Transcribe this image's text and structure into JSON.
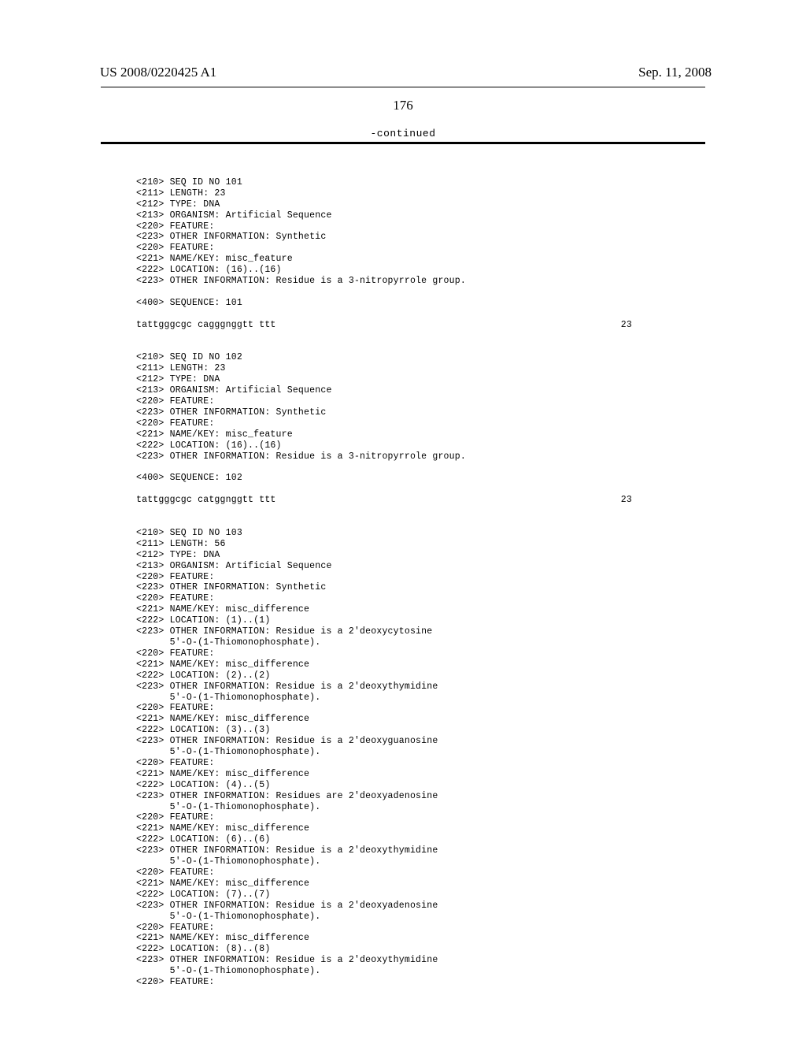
{
  "header": {
    "publication_number": "US 2008/0220425 A1",
    "publication_date": "Sep. 11, 2008"
  },
  "page_number": "176",
  "continued_label": "-continued",
  "sequences": [
    {
      "lines": [
        "",
        "<210> SEQ ID NO 101",
        "<211> LENGTH: 23",
        "<212> TYPE: DNA",
        "<213> ORGANISM: Artificial Sequence",
        "<220> FEATURE:",
        "<223> OTHER INFORMATION: Synthetic",
        "<220> FEATURE:",
        "<221> NAME/KEY: misc_feature",
        "<222> LOCATION: (16)..(16)",
        "<223> OTHER INFORMATION: Residue is a 3-nitropyrrole group.",
        "",
        "<400> SEQUENCE: 101",
        ""
      ],
      "sequence_line": "tattgggcgc cagggnggtt ttt",
      "count": "23"
    },
    {
      "lines": [
        "",
        "",
        "<210> SEQ ID NO 102",
        "<211> LENGTH: 23",
        "<212> TYPE: DNA",
        "<213> ORGANISM: Artificial Sequence",
        "<220> FEATURE:",
        "<223> OTHER INFORMATION: Synthetic",
        "<220> FEATURE:",
        "<221> NAME/KEY: misc_feature",
        "<222> LOCATION: (16)..(16)",
        "<223> OTHER INFORMATION: Residue is a 3-nitropyrrole group.",
        "",
        "<400> SEQUENCE: 102",
        ""
      ],
      "sequence_line": "tattgggcgc catggnggtt ttt",
      "count": "23"
    },
    {
      "lines": [
        "",
        "",
        "<210> SEQ ID NO 103",
        "<211> LENGTH: 56",
        "<212> TYPE: DNA",
        "<213> ORGANISM: Artificial Sequence",
        "<220> FEATURE:",
        "<223> OTHER INFORMATION: Synthetic",
        "<220> FEATURE:",
        "<221> NAME/KEY: misc_difference",
        "<222> LOCATION: (1)..(1)",
        "<223> OTHER INFORMATION: Residue is a 2'deoxycytosine",
        "      5'-O-(1-Thiomonophosphate).",
        "<220> FEATURE:",
        "<221> NAME/KEY: misc_difference",
        "<222> LOCATION: (2)..(2)",
        "<223> OTHER INFORMATION: Residue is a 2'deoxythymidine",
        "      5'-O-(1-Thiomonophosphate).",
        "<220> FEATURE:",
        "<221> NAME/KEY: misc_difference",
        "<222> LOCATION: (3)..(3)",
        "<223> OTHER INFORMATION: Residue is a 2'deoxyguanosine",
        "      5'-O-(1-Thiomonophosphate).",
        "<220> FEATURE:",
        "<221> NAME/KEY: misc_difference",
        "<222> LOCATION: (4)..(5)",
        "<223> OTHER INFORMATION: Residues are 2'deoxyadenosine",
        "      5'-O-(1-Thiomonophosphate).",
        "<220> FEATURE:",
        "<221> NAME/KEY: misc_difference",
        "<222> LOCATION: (6)..(6)",
        "<223> OTHER INFORMATION: Residue is a 2'deoxythymidine",
        "      5'-O-(1-Thiomonophosphate).",
        "<220> FEATURE:",
        "<221> NAME/KEY: misc_difference",
        "<222> LOCATION: (7)..(7)",
        "<223> OTHER INFORMATION: Residue is a 2'deoxyadenosine",
        "      5'-O-(1-Thiomonophosphate).",
        "<220> FEATURE:",
        "<221> NAME/KEY: misc_difference",
        "<222> LOCATION: (8)..(8)",
        "<223> OTHER INFORMATION: Residue is a 2'deoxythymidine",
        "      5'-O-(1-Thiomonophosphate).",
        "<220> FEATURE:"
      ],
      "sequence_line": null,
      "count": null
    }
  ]
}
